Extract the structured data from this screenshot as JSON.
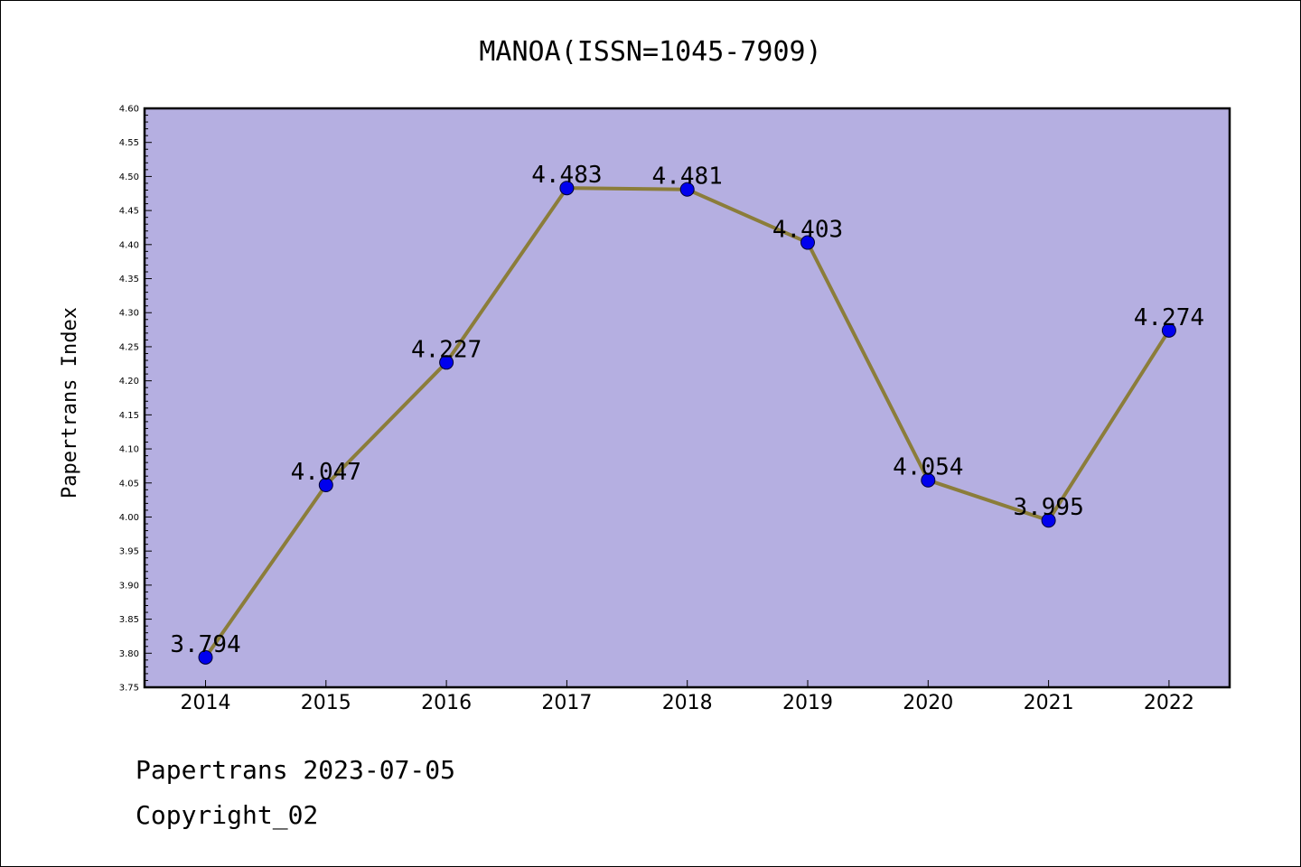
{
  "chart_data": {
    "type": "line",
    "title": "MANOA(ISSN=1045-7909)",
    "xlabel": "",
    "ylabel": "Papertrans Index",
    "categories": [
      "2014",
      "2015",
      "2016",
      "2017",
      "2018",
      "2019",
      "2020",
      "2021",
      "2022"
    ],
    "values": [
      3.794,
      4.047,
      4.227,
      4.483,
      4.481,
      4.403,
      4.054,
      3.995,
      4.274
    ],
    "data_labels": [
      "3.794",
      "4.047",
      "4.227",
      "4.483",
      "4.481",
      "4.403",
      "4.054",
      "3.995",
      "4.274"
    ],
    "ylim": [
      3.75,
      4.6
    ],
    "yticks": [
      "3.75",
      "3.80",
      "3.85",
      "3.90",
      "3.95",
      "4.00",
      "4.05",
      "4.10",
      "4.15",
      "4.20",
      "4.25",
      "4.30",
      "4.35",
      "4.40",
      "4.45",
      "4.50",
      "4.55",
      "4.60"
    ],
    "grid": false,
    "legend": "none",
    "colors": {
      "plot_background": "#b5afe1",
      "line": "#8b7d3a",
      "marker": "#0000ee"
    }
  },
  "footer": {
    "line1": "Papertrans 2023-07-05",
    "line2": "Copyright_02"
  }
}
